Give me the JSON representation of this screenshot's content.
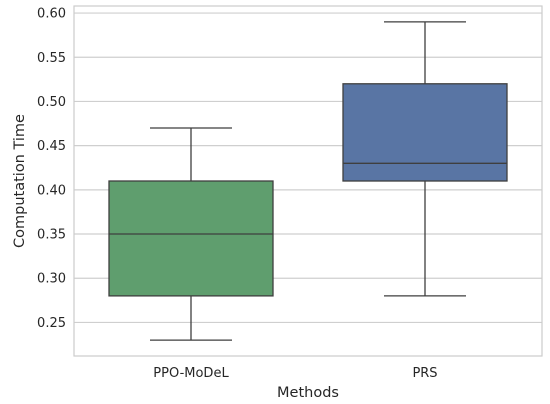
{
  "chart_data": {
    "type": "box",
    "title": "",
    "xlabel": "Methods",
    "ylabel": "Computation Time",
    "ylim": [
      0.212,
      0.608
    ],
    "yticks": [
      0.25,
      0.3,
      0.35,
      0.4,
      0.45,
      0.5,
      0.55,
      0.6
    ],
    "ytick_labels": [
      "0.25",
      "0.30",
      "0.35",
      "0.40",
      "0.45",
      "0.50",
      "0.55",
      "0.60"
    ],
    "grid": true,
    "categories": [
      "PPO-MoDeL",
      "PRS"
    ],
    "boxes": [
      {
        "category": "PPO-MoDeL",
        "whisker_low": 0.23,
        "q1": 0.28,
        "median": 0.35,
        "q3": 0.41,
        "whisker_high": 0.47,
        "color": "#5f9e6e"
      },
      {
        "category": "PRS",
        "whisker_low": 0.28,
        "q1": 0.41,
        "median": 0.43,
        "q3": 0.52,
        "whisker_high": 0.59,
        "color": "#5975a4"
      }
    ],
    "colors": {
      "grid": "#cfcfcf",
      "frame": "#cccccc",
      "line": "#3f3f3f",
      "text": "#262626"
    }
  }
}
